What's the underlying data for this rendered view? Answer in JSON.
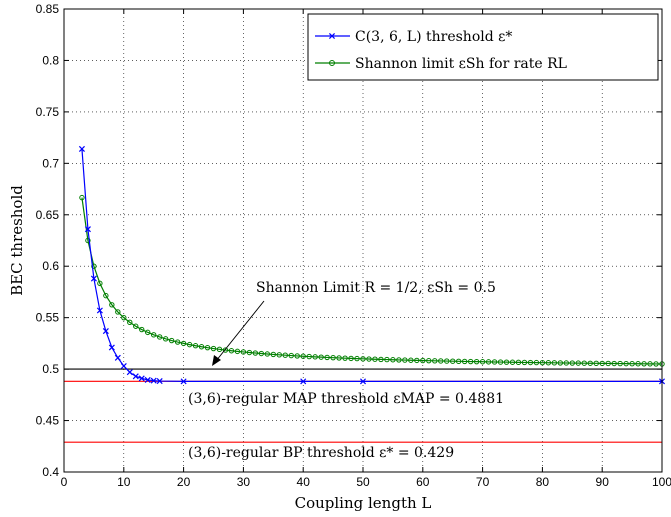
{
  "chart_data": {
    "type": "line",
    "title": "",
    "xlabel": "Coupling length L",
    "ylabel": "BEC threshold",
    "xlim": [
      0,
      100
    ],
    "ylim": [
      0.4,
      0.85
    ],
    "x_ticks": [
      "0",
      "10",
      "20",
      "30",
      "40",
      "50",
      "60",
      "70",
      "80",
      "90",
      "100"
    ],
    "y_ticks": [
      "0.4",
      "0.45",
      "0.5",
      "0.55",
      "0.6",
      "0.65",
      "0.7",
      "0.75",
      "0.8",
      "0.85"
    ],
    "grid": true,
    "legend_position": "top-right",
    "series": [
      {
        "name": "C(3,6,L) threshold ε*",
        "color": "#0000ff",
        "marker": "x",
        "x": [
          3,
          4,
          5,
          6,
          7,
          8,
          9,
          10,
          11,
          12,
          13,
          14,
          15,
          16,
          20,
          40,
          50,
          100
        ],
        "y": [
          0.714,
          0.636,
          0.588,
          0.557,
          0.537,
          0.521,
          0.511,
          0.503,
          0.497,
          0.493,
          0.491,
          0.4895,
          0.4888,
          0.4884,
          0.4881,
          0.4881,
          0.4881,
          0.4881
        ]
      },
      {
        "name": "Shannon limit εSh for rate RL",
        "color": "#007f00",
        "marker": "o",
        "x_start": 3,
        "x_end": 100,
        "formula_note": "ε = 0.5 + 1/(2L)"
      }
    ],
    "reference_lines": [
      {
        "name": "Shannon limit",
        "y": 0.5,
        "color": "#000000"
      },
      {
        "name": "MAP threshold",
        "y": 0.4881,
        "color": "#ff0000"
      },
      {
        "name": "BP threshold",
        "y": 0.429,
        "color": "#ff0000"
      }
    ],
    "annotations": {
      "shannon": "Shannon Limit R = 1/2, εSh = 0.5",
      "map": "(3,6)-regular MAP threshold εMAP = 0.4881",
      "bp": "(3,6)-regular BP threshold ε* = 0.429"
    },
    "legend": {
      "entry1": "C(3, 6, L) threshold ε*",
      "entry2": "Shannon limit εSh for rate RL"
    }
  }
}
